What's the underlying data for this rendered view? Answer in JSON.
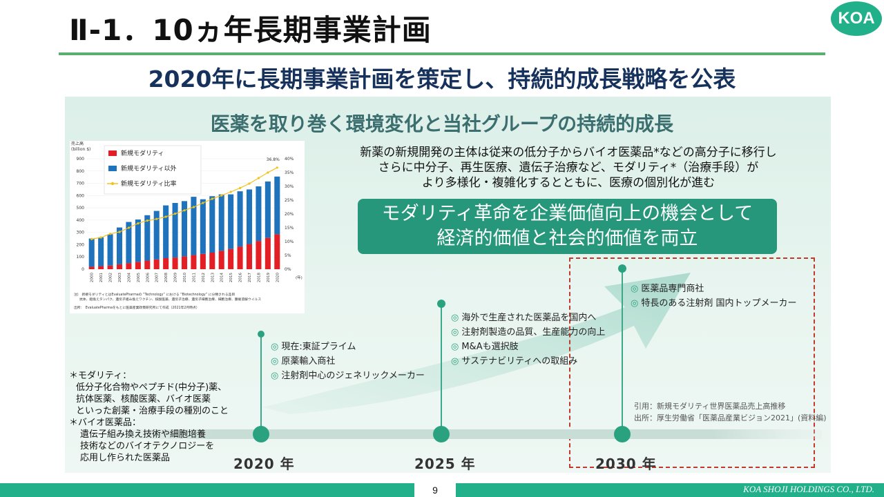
{
  "header": {
    "title": "Ⅱ-1．10ヵ年長期事業計画",
    "logo_text": "KOA",
    "subtitle": "2020年に長期事業計画を策定し、持続的成長戦略を公表"
  },
  "panel": {
    "title": "医薬を取り巻く環境変化と当社グループの持続的成長",
    "intro_lines": [
      "新薬の新規開発の主体は従来の低分子からバイオ医薬品*などの高分子に移行し",
      "さらに中分子、再生医療、遺伝子治療など、モダリティ*（治療手段）が",
      "より多様化・複雑化するとともに、医療の個別化が進む"
    ],
    "slogan_lines": [
      "モダリティ革命を企業価値向上の機会として",
      "経済的価値と社会的価値を両立"
    ]
  },
  "timeline": {
    "stage_2020": {
      "year": "2020 年",
      "items": [
        "現在:東証プライム",
        "原薬輸入商社",
        "注射剤中心のジェネリックメーカー"
      ]
    },
    "stage_2025": {
      "year": "2025 年",
      "items": [
        "海外で生産された医薬品を国内へ",
        "注射剤製造の品質、生産能力の向上",
        "M&Aも選択肢",
        "サステナビリティへの取組み"
      ]
    },
    "stage_2030": {
      "year": "2030 年",
      "items": [
        "医薬品専門商社",
        "特長のある注射剤 国内トップメーカー"
      ]
    },
    "bullet_mark": "◎"
  },
  "notes": {
    "modality_head": "＊モダリティ：",
    "modality_lines": [
      "低分子化合物やペプチド(中分子)薬、",
      "抗体医薬、核酸医薬、バイオ医薬",
      "といった創薬・治療手段の種別のこと"
    ],
    "bio_head": "＊バイオ医薬品：",
    "bio_lines": [
      "遺伝子組み換え技術や細胞培養",
      "技術などのバイオテクノロジーを",
      "応用し作られた医薬品"
    ]
  },
  "citation": {
    "line1": "引用：新規モダリティ世界医薬品売上高推移",
    "line2": "出所：厚生労働省「医薬品産業ビジョン2021」(資料編)"
  },
  "footer": {
    "page": "9",
    "company": "KOA SHOJI HOLDINGS CO., LTD."
  },
  "colors": {
    "accent": "#21b08a",
    "navy": "#16325c",
    "red_series": "#e31e24",
    "blue_series": "#1f73bd",
    "ratio_line": "#f2c21b",
    "dashed_box": "#c0392b"
  },
  "chart_data": {
    "type": "bar",
    "ylabel": "売上高\n(billion $)",
    "y2label": "(年)",
    "categories": [
      "2000",
      "2001",
      "2002",
      "2003",
      "2004",
      "2005",
      "2006",
      "2007",
      "2008",
      "2009",
      "2010",
      "2011",
      "2012",
      "2013",
      "2014",
      "2015",
      "2016",
      "2017",
      "2018",
      "2019",
      "2020"
    ],
    "stacked": true,
    "ylim": [
      0,
      900
    ],
    "y2lim": [
      0,
      40
    ],
    "yticks": [
      "0",
      "100",
      "200",
      "300",
      "400",
      "500",
      "600",
      "700",
      "800",
      "900"
    ],
    "y2ticks": [
      "0%",
      "5%",
      "10%",
      "15%",
      "20%",
      "25%",
      "30%",
      "35%",
      "40%"
    ],
    "series": [
      {
        "name": "新規モダリティ",
        "values": [
          20,
          25,
          30,
          40,
          50,
          60,
          70,
          80,
          90,
          95,
          105,
          115,
          125,
          135,
          150,
          165,
          185,
          205,
          230,
          255,
          285
        ]
      },
      {
        "name": "新規モダリティ以外",
        "values": [
          230,
          235,
          255,
          300,
          335,
          345,
          370,
          395,
          430,
          445,
          450,
          475,
          445,
          460,
          460,
          445,
          450,
          445,
          445,
          460,
          470
        ]
      },
      {
        "name": "新規モダリティ比率",
        "values": [
          10.9,
          11.5,
          12.8,
          13.5,
          15.0,
          16.6,
          17.6,
          18.2,
          19.0,
          20.1,
          21.3,
          22.5,
          24.0,
          25.5,
          26.7,
          28.0,
          29.4,
          31.0,
          33.0,
          35.0,
          36.8
        ]
      }
    ],
    "annotations": [
      "36.8%"
    ],
    "legend_position": "top-left",
    "notes": [
      "注)　新規モダリティとはEvaluatePharmaの “Technology” における “Biotechnology” に分類される品目",
      "抗体、組換えタンパク、遺伝子組み換えワクチン、核酸医薬、遺伝子治療、遺伝子細胞治療、細胞治療、腫瘍溶解ウイルス",
      "出所：　EvaluatePharmaをもとに医薬産業政策研究所にて作成（2021年2月時点）"
    ]
  }
}
